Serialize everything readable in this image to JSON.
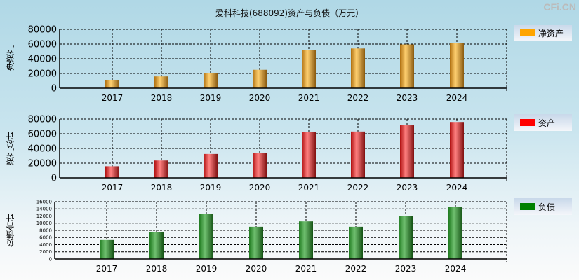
{
  "title": "爱科科技(688092)资产与负债（万元）",
  "logo": "CFi.CN",
  "chart_data": [
    {
      "type": "bar",
      "ylabel": "净资产",
      "legend": "净资产",
      "color": "#FFA500",
      "categories": [
        "2017",
        "2018",
        "2019",
        "2020",
        "2021",
        "2022",
        "2023",
        "2024"
      ],
      "values": [
        10500,
        16000,
        20000,
        25000,
        52000,
        54000,
        59500,
        61500
      ],
      "ylim": [
        0,
        80000
      ],
      "yticks": [
        0,
        20000,
        40000,
        60000,
        80000
      ],
      "grid": true,
      "legend_position": "right"
    },
    {
      "type": "bar",
      "ylabel": "资产总计",
      "legend": "资产",
      "color": "#FF0000",
      "categories": [
        "2017",
        "2018",
        "2019",
        "2020",
        "2021",
        "2022",
        "2023",
        "2024"
      ],
      "values": [
        15800,
        23600,
        32500,
        34000,
        62500,
        63000,
        71400,
        76000
      ],
      "ylim": [
        0,
        80000
      ],
      "yticks": [
        0,
        20000,
        40000,
        60000,
        80000
      ],
      "grid": true,
      "legend_position": "right"
    },
    {
      "type": "bar",
      "ylabel": "负债合计",
      "legend": "负债",
      "color": "#008000",
      "categories": [
        "2017",
        "2018",
        "2019",
        "2020",
        "2021",
        "2022",
        "2023",
        "2024"
      ],
      "values": [
        5300,
        7600,
        12500,
        9000,
        10500,
        9000,
        11900,
        14450
      ],
      "ylim": [
        0,
        16000
      ],
      "yticks": [
        0,
        2000,
        4000,
        6000,
        8000,
        10000,
        12000,
        14000,
        16000
      ],
      "grid": true,
      "legend_position": "right"
    }
  ]
}
